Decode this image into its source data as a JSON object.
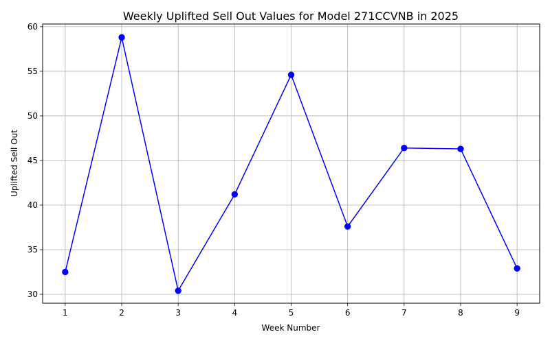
{
  "chart_data": {
    "type": "line",
    "title": "Weekly Uplifted Sell Out Values for Model 271CCVNB in 2025",
    "xlabel": "Week Number",
    "ylabel": "Uplifted Sell Out",
    "x": [
      1,
      2,
      3,
      4,
      5,
      6,
      7,
      8,
      9
    ],
    "x_tick_labels": [
      "1",
      "2",
      "3",
      "4",
      "5",
      "6",
      "7",
      "8",
      "9"
    ],
    "y_tick_values": [
      30,
      35,
      40,
      45,
      50,
      55,
      60
    ],
    "y_tick_labels": [
      "30",
      "35",
      "40",
      "45",
      "50",
      "55",
      "60"
    ],
    "xlim": [
      0.6,
      9.4
    ],
    "ylim": [
      29.0,
      60.3
    ],
    "grid": true,
    "series": [
      {
        "values": [
          32.5,
          58.8,
          30.4,
          41.2,
          54.6,
          37.6,
          46.4,
          46.3,
          32.9
        ],
        "color": "#0000ff",
        "marker": "circle"
      }
    ]
  }
}
